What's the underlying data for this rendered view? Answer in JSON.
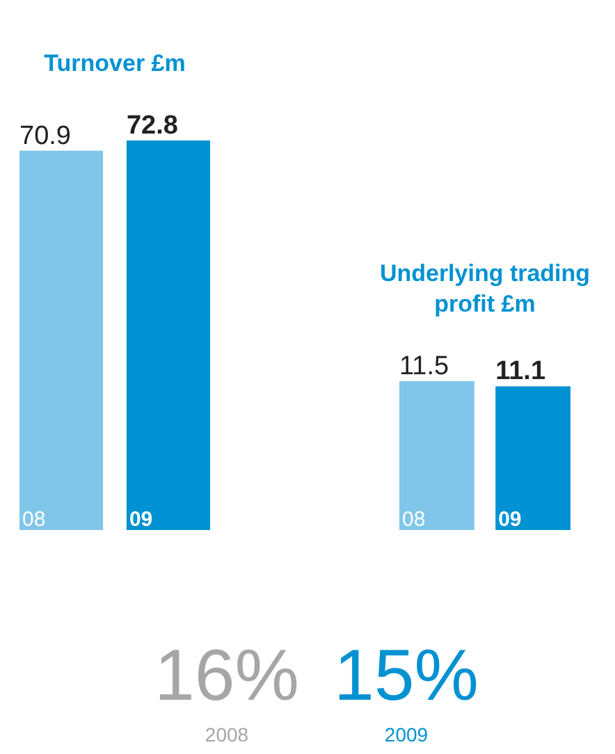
{
  "chart_data": [
    {
      "type": "bar",
      "title": "Turnover £m",
      "categories": [
        "08",
        "09"
      ],
      "values": [
        70.9,
        72.8
      ],
      "colors": [
        "#80c6ea",
        "#0092d2"
      ],
      "data_labels": true
    },
    {
      "type": "bar",
      "title": "Underlying trading profit £m",
      "categories": [
        "08",
        "09"
      ],
      "values": [
        11.5,
        11.1
      ],
      "colors": [
        "#80c6ea",
        "#0092d2"
      ],
      "data_labels": true
    },
    {
      "type": "other",
      "annotations": [
        "16%",
        "2008",
        "15%",
        "2009"
      ]
    }
  ]
}
